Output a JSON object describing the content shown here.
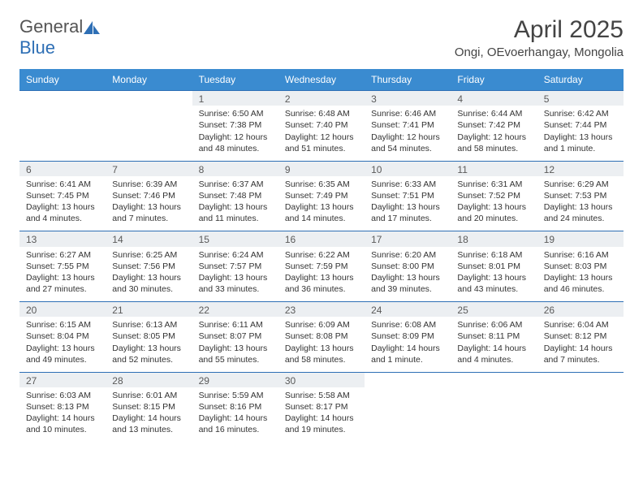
{
  "brand": {
    "text1": "General",
    "text2": "Blue"
  },
  "title": "April 2025",
  "location": "Ongi, OEvoerhangay, Mongolia",
  "colors": {
    "header_bg": "#3a8bd0",
    "header_border": "#2e6fb5",
    "daynum_bg": "#eceff2",
    "text": "#333333",
    "brand_gray": "#555555",
    "brand_blue": "#2e6fb5"
  },
  "week_headers": [
    "Sunday",
    "Monday",
    "Tuesday",
    "Wednesday",
    "Thursday",
    "Friday",
    "Saturday"
  ],
  "first_weekday_index": 2,
  "days": [
    {
      "n": 1,
      "sunrise": "6:50 AM",
      "sunset": "7:38 PM",
      "daylight": "12 hours and 48 minutes."
    },
    {
      "n": 2,
      "sunrise": "6:48 AM",
      "sunset": "7:40 PM",
      "daylight": "12 hours and 51 minutes."
    },
    {
      "n": 3,
      "sunrise": "6:46 AM",
      "sunset": "7:41 PM",
      "daylight": "12 hours and 54 minutes."
    },
    {
      "n": 4,
      "sunrise": "6:44 AM",
      "sunset": "7:42 PM",
      "daylight": "12 hours and 58 minutes."
    },
    {
      "n": 5,
      "sunrise": "6:42 AM",
      "sunset": "7:44 PM",
      "daylight": "13 hours and 1 minute."
    },
    {
      "n": 6,
      "sunrise": "6:41 AM",
      "sunset": "7:45 PM",
      "daylight": "13 hours and 4 minutes."
    },
    {
      "n": 7,
      "sunrise": "6:39 AM",
      "sunset": "7:46 PM",
      "daylight": "13 hours and 7 minutes."
    },
    {
      "n": 8,
      "sunrise": "6:37 AM",
      "sunset": "7:48 PM",
      "daylight": "13 hours and 11 minutes."
    },
    {
      "n": 9,
      "sunrise": "6:35 AM",
      "sunset": "7:49 PM",
      "daylight": "13 hours and 14 minutes."
    },
    {
      "n": 10,
      "sunrise": "6:33 AM",
      "sunset": "7:51 PM",
      "daylight": "13 hours and 17 minutes."
    },
    {
      "n": 11,
      "sunrise": "6:31 AM",
      "sunset": "7:52 PM",
      "daylight": "13 hours and 20 minutes."
    },
    {
      "n": 12,
      "sunrise": "6:29 AM",
      "sunset": "7:53 PM",
      "daylight": "13 hours and 24 minutes."
    },
    {
      "n": 13,
      "sunrise": "6:27 AM",
      "sunset": "7:55 PM",
      "daylight": "13 hours and 27 minutes."
    },
    {
      "n": 14,
      "sunrise": "6:25 AM",
      "sunset": "7:56 PM",
      "daylight": "13 hours and 30 minutes."
    },
    {
      "n": 15,
      "sunrise": "6:24 AM",
      "sunset": "7:57 PM",
      "daylight": "13 hours and 33 minutes."
    },
    {
      "n": 16,
      "sunrise": "6:22 AM",
      "sunset": "7:59 PM",
      "daylight": "13 hours and 36 minutes."
    },
    {
      "n": 17,
      "sunrise": "6:20 AM",
      "sunset": "8:00 PM",
      "daylight": "13 hours and 39 minutes."
    },
    {
      "n": 18,
      "sunrise": "6:18 AM",
      "sunset": "8:01 PM",
      "daylight": "13 hours and 43 minutes."
    },
    {
      "n": 19,
      "sunrise": "6:16 AM",
      "sunset": "8:03 PM",
      "daylight": "13 hours and 46 minutes."
    },
    {
      "n": 20,
      "sunrise": "6:15 AM",
      "sunset": "8:04 PM",
      "daylight": "13 hours and 49 minutes."
    },
    {
      "n": 21,
      "sunrise": "6:13 AM",
      "sunset": "8:05 PM",
      "daylight": "13 hours and 52 minutes."
    },
    {
      "n": 22,
      "sunrise": "6:11 AM",
      "sunset": "8:07 PM",
      "daylight": "13 hours and 55 minutes."
    },
    {
      "n": 23,
      "sunrise": "6:09 AM",
      "sunset": "8:08 PM",
      "daylight": "13 hours and 58 minutes."
    },
    {
      "n": 24,
      "sunrise": "6:08 AM",
      "sunset": "8:09 PM",
      "daylight": "14 hours and 1 minute."
    },
    {
      "n": 25,
      "sunrise": "6:06 AM",
      "sunset": "8:11 PM",
      "daylight": "14 hours and 4 minutes."
    },
    {
      "n": 26,
      "sunrise": "6:04 AM",
      "sunset": "8:12 PM",
      "daylight": "14 hours and 7 minutes."
    },
    {
      "n": 27,
      "sunrise": "6:03 AM",
      "sunset": "8:13 PM",
      "daylight": "14 hours and 10 minutes."
    },
    {
      "n": 28,
      "sunrise": "6:01 AM",
      "sunset": "8:15 PM",
      "daylight": "14 hours and 13 minutes."
    },
    {
      "n": 29,
      "sunrise": "5:59 AM",
      "sunset": "8:16 PM",
      "daylight": "14 hours and 16 minutes."
    },
    {
      "n": 30,
      "sunrise": "5:58 AM",
      "sunset": "8:17 PM",
      "daylight": "14 hours and 19 minutes."
    }
  ],
  "labels": {
    "sunrise": "Sunrise:",
    "sunset": "Sunset:",
    "daylight": "Daylight:"
  }
}
